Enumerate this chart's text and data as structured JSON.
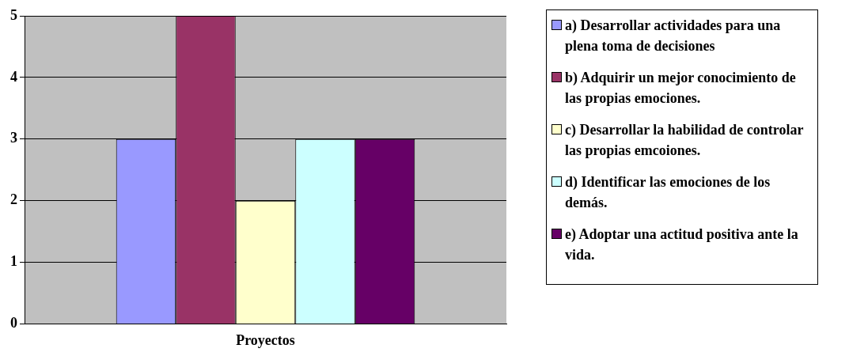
{
  "chart_data": {
    "type": "bar",
    "categories": [
      "Proyectos"
    ],
    "series": [
      {
        "name": "a) Desarrollar actividades para una plena toma de decisiones",
        "color": "#9999ff",
        "values": [
          3
        ]
      },
      {
        "name": "b) Adquirir un mejor conocimiento de las propias emociones.",
        "color": "#993366",
        "values": [
          5
        ]
      },
      {
        "name": "c) Desarrollar la habilidad de controlar las propias emcoiones.",
        "color": "#ffffcc",
        "values": [
          2
        ]
      },
      {
        "name": "d) Identificar las emociones de los demás.",
        "color": "#ccffff",
        "values": [
          3
        ]
      },
      {
        "name": "e) Adoptar una actitud positiva ante la vida.",
        "color": "#660066",
        "values": [
          3
        ]
      }
    ],
    "ylim": [
      0,
      5
    ],
    "yticks": [
      0,
      1,
      2,
      3,
      4,
      5
    ],
    "grid": "y",
    "legend": "right"
  }
}
